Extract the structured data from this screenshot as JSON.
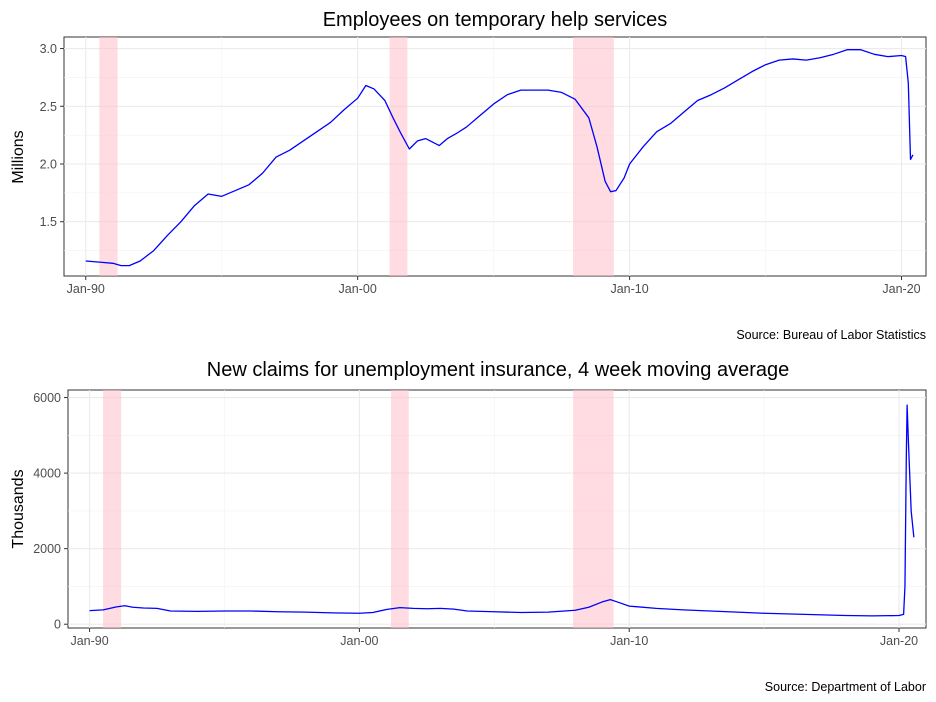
{
  "chart_data": [
    {
      "type": "line",
      "title": "Employees on temporary help services",
      "xlabel": "",
      "ylabel": "Millions",
      "source": "Source: Bureau of Labor Statistics",
      "x_tick_labels": [
        "Jan-90",
        "Jan-00",
        "Jan-10",
        "Jan-20"
      ],
      "y_tick_labels": [
        "1.5",
        "2.0",
        "2.5",
        "3.0"
      ],
      "y_ticks": [
        1.5,
        2.0,
        2.5,
        3.0
      ],
      "ylim": [
        1.03,
        3.1
      ],
      "xlim": [
        1989.2,
        2020.9
      ],
      "grid": true,
      "line_color": "#0000ff",
      "recession_color": "#ffc0cb",
      "recessions": [
        [
          1990.5,
          1991.17
        ],
        [
          2001.17,
          2001.83
        ],
        [
          2007.92,
          2009.42
        ]
      ],
      "series": [
        {
          "x": [
            1990.0,
            1990.5,
            1991.0,
            1991.3,
            1991.6,
            1992.0,
            1992.5,
            1993.0,
            1993.5,
            1994.0,
            1994.5,
            1995.0,
            1995.5,
            1996.0,
            1996.5,
            1997.0,
            1997.5,
            1998.0,
            1998.5,
            1999.0,
            1999.5,
            2000.0,
            2000.3,
            2000.6,
            2001.0,
            2001.3,
            2001.6,
            2001.9,
            2002.2,
            2002.5,
            2003.0,
            2003.3,
            2003.6,
            2004.0,
            2004.5,
            2005.0,
            2005.5,
            2006.0,
            2006.5,
            2007.0,
            2007.5,
            2008.0,
            2008.5,
            2008.8,
            2009.1,
            2009.3,
            2009.5,
            2009.8,
            2010.0,
            2010.5,
            2011.0,
            2011.5,
            2012.0,
            2012.5,
            2013.0,
            2013.5,
            2014.0,
            2014.5,
            2015.0,
            2015.5,
            2016.0,
            2016.5,
            2017.0,
            2017.5,
            2018.0,
            2018.5,
            2019.0,
            2019.5,
            2020.0,
            2020.15,
            2020.25,
            2020.33,
            2020.42
          ],
          "y": [
            1.16,
            1.15,
            1.14,
            1.12,
            1.12,
            1.16,
            1.25,
            1.38,
            1.5,
            1.64,
            1.74,
            1.72,
            1.77,
            1.82,
            1.92,
            2.06,
            2.12,
            2.2,
            2.28,
            2.36,
            2.47,
            2.57,
            2.68,
            2.65,
            2.55,
            2.4,
            2.26,
            2.13,
            2.2,
            2.22,
            2.16,
            2.22,
            2.26,
            2.32,
            2.42,
            2.52,
            2.6,
            2.64,
            2.64,
            2.64,
            2.62,
            2.56,
            2.4,
            2.15,
            1.85,
            1.76,
            1.77,
            1.88,
            2.0,
            2.15,
            2.28,
            2.35,
            2.45,
            2.55,
            2.6,
            2.66,
            2.73,
            2.8,
            2.86,
            2.9,
            2.91,
            2.9,
            2.92,
            2.95,
            2.99,
            2.99,
            2.95,
            2.93,
            2.94,
            2.93,
            2.7,
            2.04,
            2.08
          ]
        }
      ]
    },
    {
      "type": "line",
      "title": "New claims for unemployment insurance, 4 week moving average",
      "xlabel": "",
      "ylabel": "Thousands",
      "source": "Source: Department of Labor",
      "x_tick_labels": [
        "Jan-90",
        "Jan-00",
        "Jan-10",
        "Jan-20"
      ],
      "y_tick_labels": [
        "0",
        "2000",
        "4000",
        "6000"
      ],
      "y_ticks": [
        0,
        2000,
        4000,
        6000
      ],
      "ylim": [
        -100,
        6200
      ],
      "xlim": [
        1989.2,
        2021.0
      ],
      "grid": true,
      "line_color": "#0000ff",
      "recession_color": "#ffc0cb",
      "recessions": [
        [
          1990.5,
          1991.17
        ],
        [
          2001.17,
          2001.83
        ],
        [
          2007.92,
          2009.42
        ]
      ],
      "series": [
        {
          "x": [
            1990.0,
            1990.5,
            1991.0,
            1991.3,
            1991.6,
            1992.0,
            1992.5,
            1993.0,
            1994.0,
            1995.0,
            1996.0,
            1997.0,
            1998.0,
            1999.0,
            2000.0,
            2000.5,
            2001.0,
            2001.5,
            2002.0,
            2002.5,
            2003.0,
            2003.5,
            2004.0,
            2005.0,
            2006.0,
            2007.0,
            2008.0,
            2008.5,
            2009.0,
            2009.3,
            2009.6,
            2010.0,
            2011.0,
            2012.0,
            2013.0,
            2014.0,
            2015.0,
            2016.0,
            2017.0,
            2018.0,
            2019.0,
            2020.0,
            2020.17,
            2020.22,
            2020.27,
            2020.3,
            2020.35,
            2020.45,
            2020.55
          ],
          "y": [
            360,
            380,
            460,
            490,
            450,
            430,
            420,
            350,
            340,
            350,
            350,
            330,
            320,
            300,
            290,
            310,
            390,
            440,
            420,
            410,
            420,
            400,
            350,
            330,
            310,
            320,
            370,
            450,
            590,
            650,
            580,
            480,
            420,
            380,
            350,
            320,
            290,
            270,
            250,
            230,
            220,
            230,
            260,
            1000,
            4400,
            5800,
            4800,
            3000,
            2300
          ]
        }
      ]
    }
  ]
}
